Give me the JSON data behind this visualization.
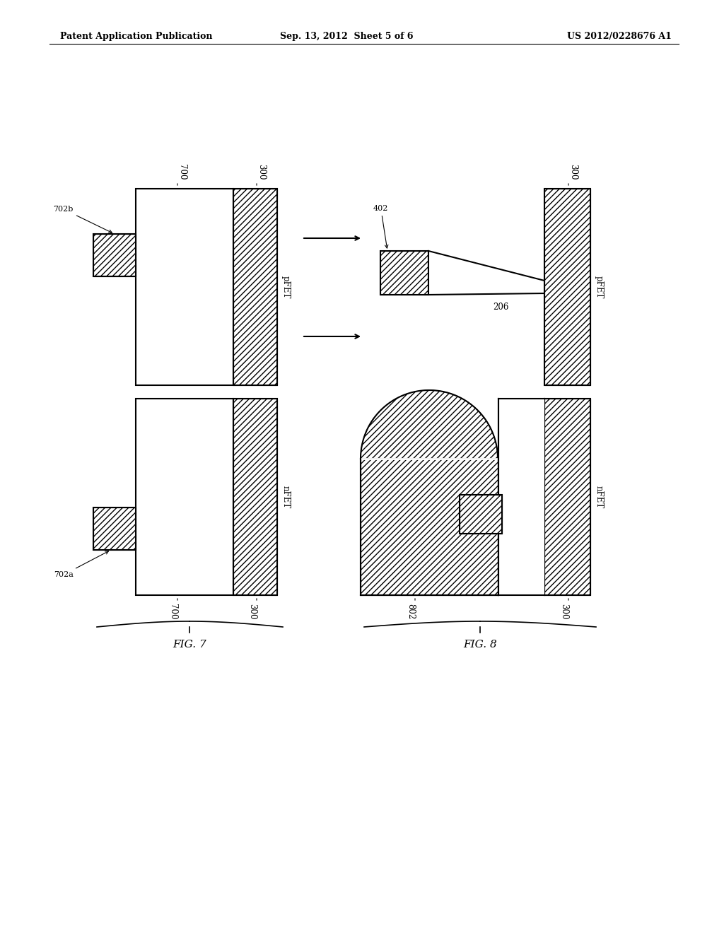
{
  "header_left": "Patent Application Publication",
  "header_mid": "Sep. 13, 2012  Sheet 5 of 6",
  "header_right": "US 2012/0228676 A1",
  "fig7_label": "FIG. 7",
  "fig8_label": "FIG. 8",
  "bg_color": "#ffffff"
}
